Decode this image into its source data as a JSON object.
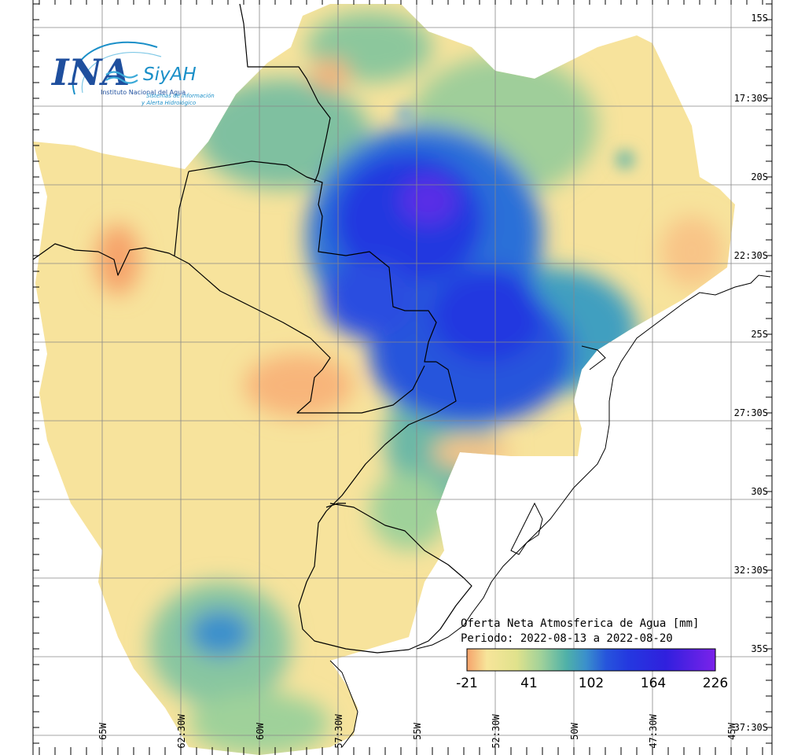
{
  "logo": {
    "ina": "INA",
    "siyah": "SiyAH",
    "institute": "Instituto Nacional del Agua",
    "system_line1": "Sistemas de información",
    "system_line2": "y Alerta Hidrológico"
  },
  "map": {
    "variable": "Oferta Neta Atmosferica de Agua [mm]",
    "period_label": "Periodo: 2022-08-13 a 2022-08-20",
    "lat_labels": [
      "15S",
      "17:30S",
      "20S",
      "22:30S",
      "25S",
      "27:30S",
      "30S",
      "32:30S",
      "35S",
      "37:30S"
    ],
    "lon_labels": [
      "65W",
      "62:30W",
      "60W",
      "57:30W",
      "55W",
      "52:30W",
      "50W",
      "47:30W",
      "45W"
    ]
  },
  "legend": {
    "ticks": [
      "-21",
      "41",
      "102",
      "164",
      "226"
    ],
    "colors": [
      "#f6a36b",
      "#f7e59a",
      "#e9e88e",
      "#9fd19a",
      "#5fb8a0",
      "#3f9fc0",
      "#2a6fd8",
      "#2438e0",
      "#2a1bde",
      "#5a1ee6",
      "#7b22ea"
    ]
  }
}
